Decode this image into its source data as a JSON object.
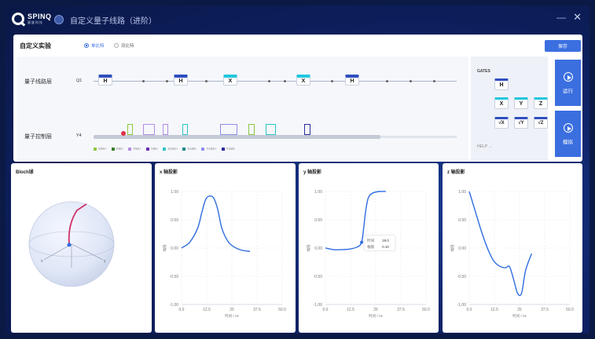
{
  "app": {
    "logo_text": "SPINQ",
    "logo_sub": "量旋科技",
    "window_title": "自定义量子线路（进阶）",
    "minimize_glyph": "—",
    "close_glyph": "✕"
  },
  "experiment": {
    "title": "自定义实验",
    "radio_single": "单比特",
    "radio_double": "双比特",
    "selected": "single",
    "save_label": "保存"
  },
  "circuit": {
    "layer_label": "量子线路层",
    "qubit_label": "Q1",
    "gates": [
      "H",
      "H",
      "X",
      "X",
      "H"
    ]
  },
  "control": {
    "layer_label": "量子控制层",
    "qubit_label": "Y4",
    "legend": [
      {
        "label": "X90+",
        "color": "#8cc63f"
      },
      {
        "label": "X90-",
        "color": "#3a7d2c"
      },
      {
        "label": "Y90+",
        "color": "#b38de0"
      },
      {
        "label": "Y90-",
        "color": "#6a2fb8"
      },
      {
        "label": "X180+",
        "color": "#2ec4c4"
      },
      {
        "label": "X180-",
        "color": "#1d8a8a"
      },
      {
        "label": "Y180+",
        "color": "#8f8fe8"
      },
      {
        "label": "Y180-",
        "color": "#2c2c9e"
      }
    ]
  },
  "gates_panel": {
    "title": "GATES",
    "gates": [
      "H",
      "X",
      "Y",
      "Z",
      "√X",
      "√Y",
      "√Z"
    ],
    "help": "HELP →"
  },
  "actions": {
    "run_label": "运行",
    "simulate_label": "模拟"
  },
  "bloch": {
    "title": "Bloch球",
    "axis_x": "x",
    "axis_y": "y"
  },
  "projections": [
    {
      "title": "x 轴投影",
      "yticks": [
        "1.00",
        "0.50",
        "0.00",
        "-0.50",
        "-1.00"
      ],
      "xticks": [
        "0.0",
        "12.5",
        "25",
        "37.5",
        "50.0"
      ],
      "ylabel": "幅值",
      "xlabel": "时间 / ns"
    },
    {
      "title": "y 轴投影",
      "yticks": [
        "1.00",
        "0.50",
        "0.00",
        "-0.50",
        "-1.00"
      ],
      "xticks": [
        "0.0",
        "12.5",
        "25",
        "37.5",
        "50.0"
      ],
      "ylabel": "幅值",
      "xlabel": "时间 / ns",
      "tooltip": {
        "time_label": "时间",
        "time_value": "18.0",
        "amp_label": "幅值",
        "amp_value": "0.10"
      }
    },
    {
      "title": "z 轴投影",
      "yticks": [
        "1.00",
        "0.50",
        "0.00",
        "-0.50",
        "-1.00"
      ],
      "xticks": [
        "0.0",
        "12.5",
        "25",
        "37.5",
        "50.0"
      ],
      "ylabel": "幅值",
      "xlabel": "时间 / ns"
    }
  ],
  "chart_data": [
    {
      "type": "line",
      "title": "x 轴投影",
      "xlabel": "时间 / ns",
      "ylabel": "幅值",
      "xlim": [
        0,
        50
      ],
      "ylim": [
        -1,
        1
      ],
      "x": [
        0,
        4,
        8,
        10,
        12,
        14,
        16,
        18,
        20,
        23,
        26,
        30,
        34
      ],
      "y": [
        0.0,
        0.1,
        0.35,
        0.62,
        0.86,
        0.92,
        0.88,
        0.68,
        0.35,
        0.12,
        0.02,
        -0.04,
        -0.06
      ]
    },
    {
      "type": "line",
      "title": "y 轴投影",
      "xlabel": "时间 / ns",
      "ylabel": "幅值",
      "xlim": [
        0,
        50
      ],
      "ylim": [
        -1,
        1
      ],
      "x": [
        0,
        4,
        8,
        12,
        16,
        18,
        19,
        20,
        21,
        22,
        24,
        27,
        30
      ],
      "y": [
        0.0,
        -0.03,
        -0.03,
        -0.02,
        0.02,
        0.1,
        0.35,
        0.65,
        0.85,
        0.93,
        0.98,
        1.0,
        1.0
      ]
    },
    {
      "type": "line",
      "title": "z 轴投影",
      "xlabel": "时间 / ns",
      "ylabel": "幅值",
      "xlim": [
        0,
        50
      ],
      "ylim": [
        -1,
        1
      ],
      "x": [
        0,
        3,
        6,
        9,
        12,
        15,
        18,
        20,
        22,
        24,
        26,
        28,
        31
      ],
      "y": [
        1.0,
        0.65,
        0.3,
        0.0,
        -0.22,
        -0.32,
        -0.35,
        -0.33,
        -0.55,
        -0.8,
        -0.8,
        -0.4,
        -0.1
      ]
    }
  ]
}
